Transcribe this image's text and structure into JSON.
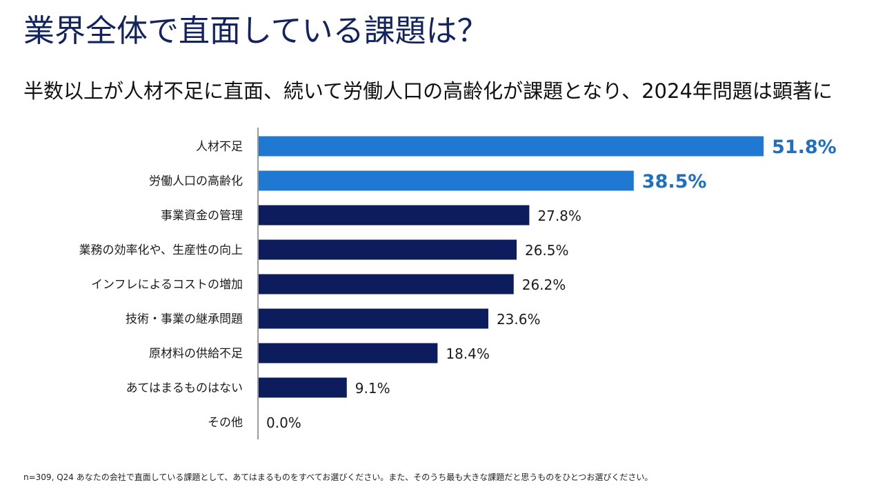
{
  "header": {
    "title": "業界全体で直面している課題は？",
    "subtitle": "半数以上が人材不足に直面、続いて労働人口の高齢化が課題となり、2024年問題は顕著に"
  },
  "footnote": "n=309, Q24 あなたの会社で直面している課題として、あてはまるものをすべてお選びください。また、そのうち最も大きな課題だと思うものをひとつお選びください。",
  "colors": {
    "highlight": "#1f78d1",
    "normal": "#0d1c5c",
    "axis": "#9a9a9a",
    "label_highlight": "#1f6fc2",
    "label_normal": "#1b1b1b"
  },
  "chart_data": {
    "type": "bar",
    "orientation": "horizontal",
    "categories": [
      "人材不足",
      "労働人口の高齢化",
      "事業資金の管理",
      "業務の効率化や、生産性の向上",
      "インフレによるコストの増加",
      "技術・事業の継承問題",
      "原材料の供給不足",
      "あてはまるものはない",
      "その他"
    ],
    "values": [
      51.8,
      38.5,
      27.8,
      26.5,
      26.2,
      23.6,
      18.4,
      9.1,
      0.0
    ],
    "value_labels": [
      "51.8%",
      "38.5%",
      "27.8%",
      "26.5%",
      "26.2%",
      "23.6%",
      "18.4%",
      "9.1%",
      "0.0%"
    ],
    "highlighted": [
      true,
      true,
      false,
      false,
      false,
      false,
      false,
      false,
      false
    ],
    "xlim": [
      0,
      60
    ],
    "grid": false,
    "legend": "none"
  }
}
